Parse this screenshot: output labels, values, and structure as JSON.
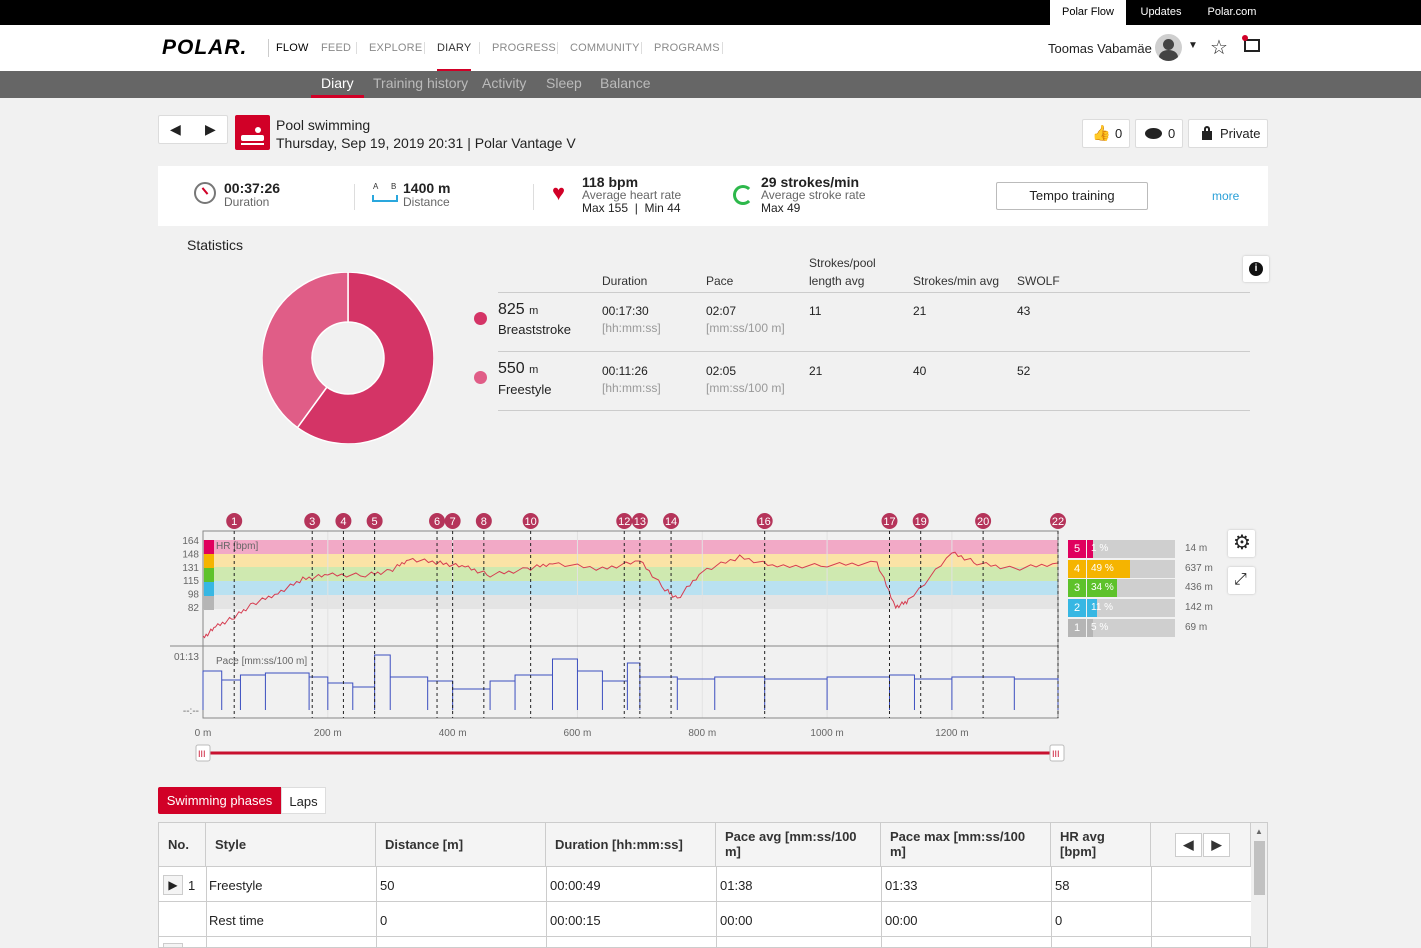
{
  "top_links": [
    "Polar Flow",
    "Updates",
    "Polar.com"
  ],
  "logo": "POLAR.",
  "nav": {
    "flow": "FLOW",
    "items": [
      "FEED",
      "EXPLORE",
      "DIARY",
      "PROGRESS",
      "COMMUNITY",
      "PROGRAMS"
    ],
    "user": "Toomas Vabamäe"
  },
  "subnav": [
    "Diary",
    "Training history",
    "Activity",
    "Sleep",
    "Balance"
  ],
  "session": {
    "title": "Pool swimming",
    "subtitle": "Thursday, Sep 19, 2019 20:31 | Polar Vantage V",
    "likes": "0",
    "comments": "0",
    "privacy": "Private"
  },
  "summary": {
    "duration": "00:37:26",
    "duration_label": "Duration",
    "distance": "1400 m",
    "distance_label": "Distance",
    "ab_a": "A",
    "ab_b": "B",
    "hr": "118 bpm",
    "hr_label": "Average heart rate",
    "hr_minmax": "Max 155  |  Min 44",
    "strokes": "29 strokes/min",
    "strokes_label": "Average stroke rate",
    "strokes_max": "Max 49",
    "tempo": "Tempo training",
    "more": "more"
  },
  "stats": {
    "title": "Statistics",
    "cols": [
      "Duration",
      "Pace",
      "Strokes/pool",
      "length avg",
      "Strokes/min avg",
      "SWOLF"
    ],
    "rows": [
      {
        "dist": "825",
        "unit": "m",
        "style": "Breaststroke",
        "duration": "00:17:30",
        "dunit": "[hh:mm:ss]",
        "pace": "02:07",
        "punit": "[mm:ss/100 m]",
        "spl": "11",
        "spm": "21",
        "swolf": "43",
        "color": "#d43466"
      },
      {
        "dist": "550",
        "unit": "m",
        "style": "Freestyle",
        "duration": "00:11:26",
        "dunit": "[hh:mm:ss]",
        "pace": "02:05",
        "punit": "[mm:ss/100 m]",
        "spl": "21",
        "spm": "40",
        "swolf": "52",
        "color": "#e05d87"
      }
    ],
    "donut": [
      {
        "value": 825,
        "color": "#d43466"
      },
      {
        "value": 550,
        "color": "#e05d87"
      }
    ]
  },
  "chart_data": {
    "type": "line",
    "x_unit": "m",
    "xlim": [
      0,
      1370
    ],
    "x_ticks": [
      "0 m",
      "200 m",
      "400 m",
      "600 m",
      "800 m",
      "1000 m",
      "1200 m"
    ],
    "hr_label": "HR [bpm]",
    "hr_ticks": [
      "164",
      "148",
      "131",
      "115",
      "98",
      "82"
    ],
    "pace_label": "Pace [mm:ss/100 m]",
    "pace_ticks": [
      "01:13",
      "--:--"
    ],
    "lap_markers": [
      "1",
      "3",
      "4",
      "5",
      "6",
      "7",
      "8",
      "10",
      "12",
      "13",
      "14",
      "16",
      "17",
      "19",
      "20",
      "22"
    ],
    "lap_x": [
      50,
      175,
      225,
      275,
      375,
      400,
      450,
      525,
      675,
      700,
      750,
      900,
      1100,
      1150,
      1250,
      1370
    ],
    "zones": [
      {
        "zone": "5",
        "pct": "1 %",
        "dist": "14 m",
        "color": "#e0005e",
        "frac": 0.01
      },
      {
        "zone": "4",
        "pct": "49 %",
        "dist": "637 m",
        "color": "#f5b400",
        "frac": 0.49
      },
      {
        "zone": "3",
        "pct": "34 %",
        "dist": "436 m",
        "color": "#5ec22b",
        "frac": 0.34
      },
      {
        "zone": "2",
        "pct": "11 %",
        "dist": "142 m",
        "color": "#37b7e3",
        "frac": 0.11
      },
      {
        "zone": "1",
        "pct": "5 %",
        "dist": "69 m",
        "color": "#b5b5b5",
        "frac": 0.05
      }
    ]
  },
  "tabs": [
    "Swimming phases",
    "Laps"
  ],
  "table": {
    "headers": [
      "No.",
      "Style",
      "Distance [m]",
      "Duration [hh:mm:ss]",
      "Pace avg [mm:ss/100 m]",
      "Pace max [mm:ss/100 m]",
      "HR avg [bpm]"
    ],
    "rows": [
      {
        "no": "1",
        "style": "Freestyle",
        "dist": "50",
        "dur": "00:00:49",
        "pavg": "01:38",
        "pmax": "01:33",
        "hr": "58"
      },
      {
        "no": "",
        "style": "Rest time",
        "dist": "0",
        "dur": "00:00:15",
        "pavg": "00:00",
        "pmax": "00:00",
        "hr": "0"
      }
    ]
  }
}
